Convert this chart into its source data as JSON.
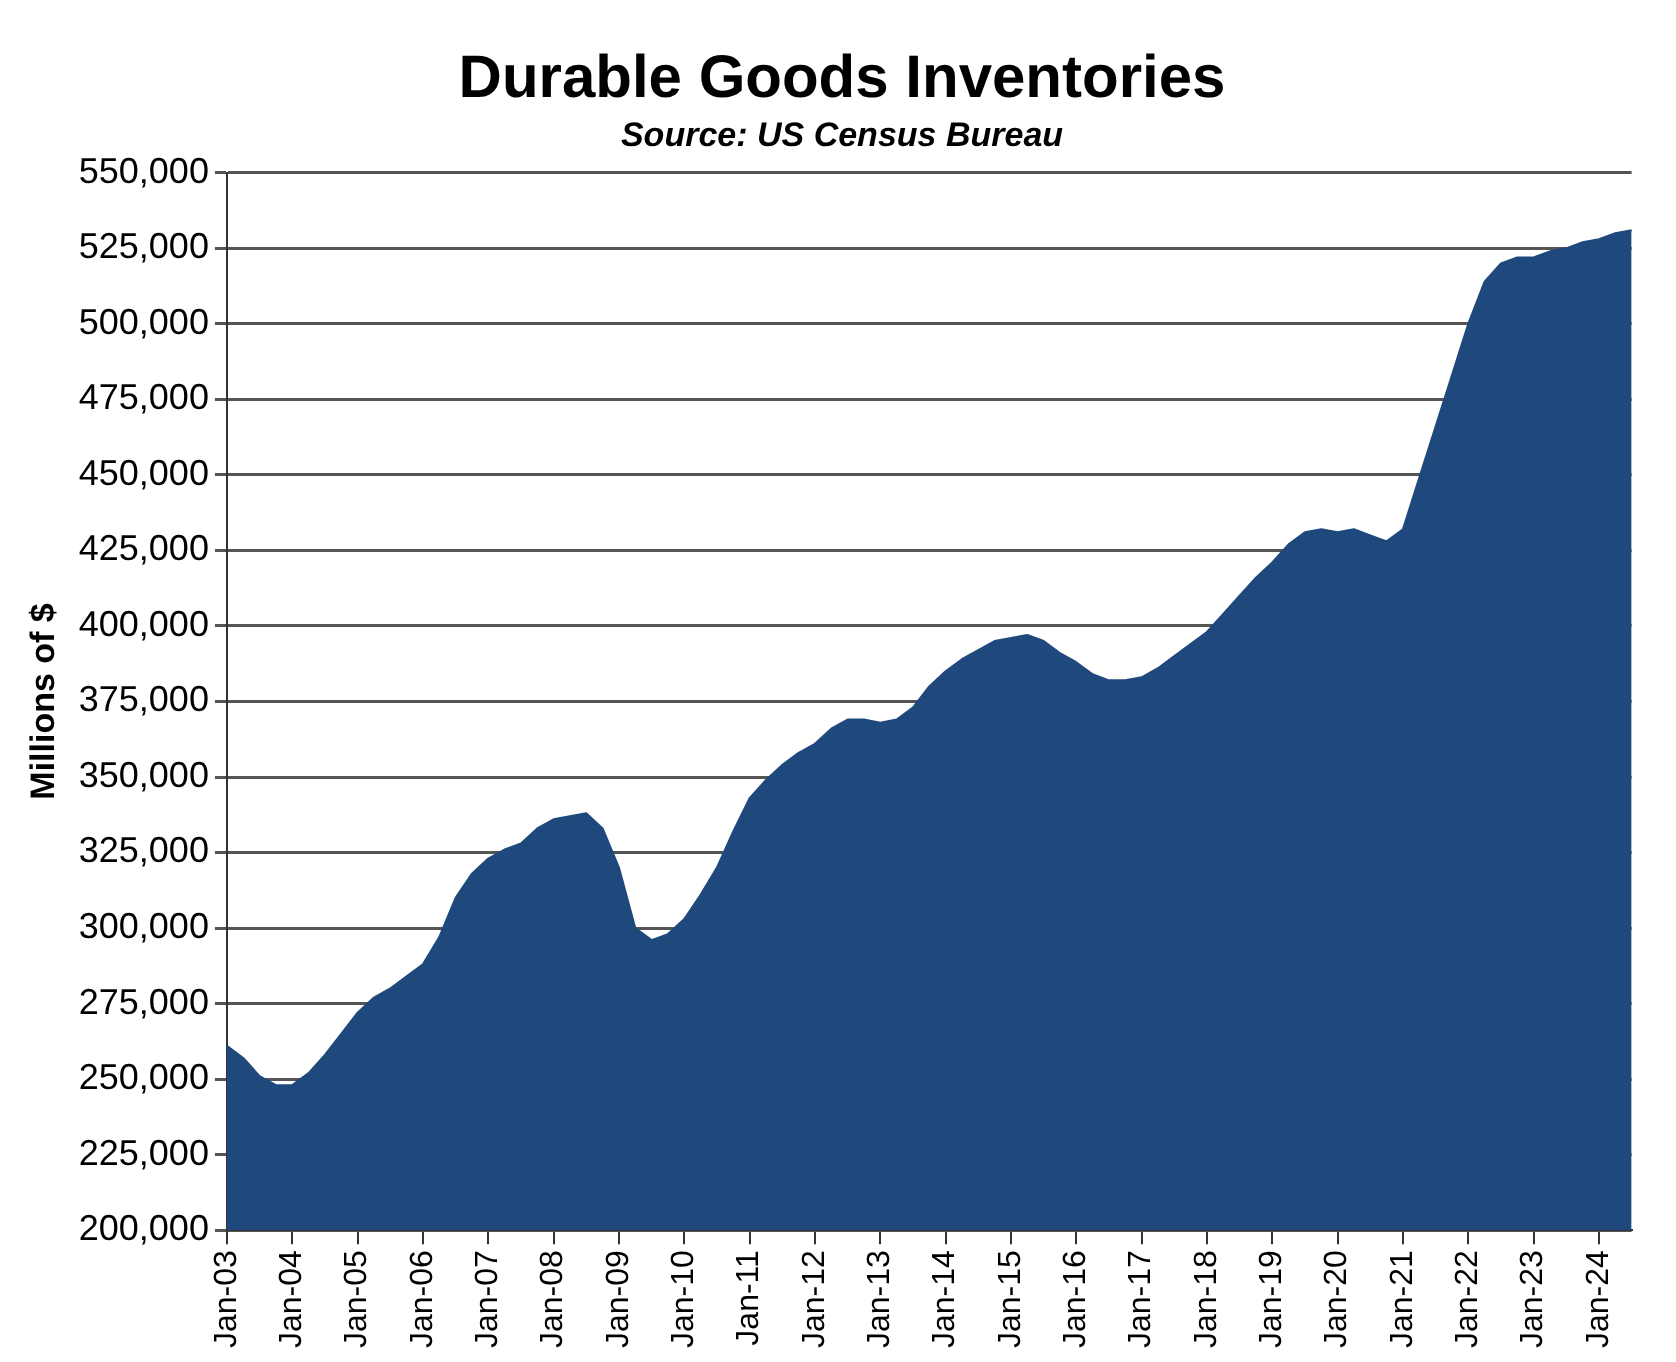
{
  "chart_data": {
    "type": "area",
    "title": "Durable Goods Inventories",
    "subtitle": "Source: US Census Bureau",
    "ylabel": "Millions of $",
    "categories": [
      "Jan-03",
      null,
      null,
      null,
      "Jan-04",
      null,
      null,
      null,
      "Jan-05",
      null,
      null,
      null,
      "Jan-06",
      null,
      null,
      null,
      "Jan-07",
      null,
      null,
      null,
      "Jan-08",
      null,
      null,
      null,
      "Jan-09",
      null,
      null,
      null,
      "Jan-10",
      null,
      null,
      null,
      "Jan-11",
      null,
      null,
      null,
      "Jan-12",
      null,
      null,
      null,
      "Jan-13",
      null,
      null,
      null,
      "Jan-14",
      null,
      null,
      null,
      "Jan-15",
      null,
      null,
      null,
      "Jan-16",
      null,
      null,
      null,
      "Jan-17",
      null,
      null,
      null,
      "Jan-18",
      null,
      null,
      null,
      "Jan-19",
      null,
      null,
      null,
      "Jan-20",
      null,
      null,
      null,
      "Jan-21",
      null,
      null,
      null,
      "Jan-22",
      null,
      null,
      null,
      "Jan-23",
      null,
      null,
      null,
      "Jan-24",
      null,
      null
    ],
    "series": [
      {
        "color": "#1f497d",
        "values": [
          261000,
          257000,
          251000,
          248000,
          248000,
          252000,
          258000,
          265000,
          272000,
          277000,
          280000,
          284000,
          288000,
          297000,
          310000,
          318000,
          323000,
          326000,
          328000,
          333000,
          336000,
          337000,
          338000,
          333000,
          320000,
          300000,
          296000,
          298000,
          303000,
          311000,
          320000,
          332000,
          343000,
          349000,
          354000,
          358000,
          361000,
          366000,
          369000,
          369000,
          368000,
          369000,
          373000,
          380000,
          385000,
          389000,
          392000,
          395000,
          396000,
          397000,
          395000,
          391000,
          388000,
          384000,
          382000,
          382000,
          383000,
          386000,
          390000,
          394000,
          398000,
          404000,
          410000,
          416000,
          421000,
          427000,
          431000,
          432000,
          431000,
          432000,
          430000,
          428000,
          432000,
          449000,
          466000,
          483000,
          500000,
          514000,
          520000,
          522000,
          522000,
          524000,
          525000,
          527000,
          528000,
          530000,
          531000
        ]
      }
    ],
    "ylim": [
      200000,
      550000
    ],
    "yticks": [
      {
        "value": 200000,
        "label": "200,000"
      },
      {
        "value": 225000,
        "label": "225,000"
      },
      {
        "value": 250000,
        "label": "250,000"
      },
      {
        "value": 275000,
        "label": "275,000"
      },
      {
        "value": 300000,
        "label": "300,000"
      },
      {
        "value": 325000,
        "label": "325,000"
      },
      {
        "value": 350000,
        "label": "350,000"
      },
      {
        "value": 375000,
        "label": "375,000"
      },
      {
        "value": 400000,
        "label": "400,000"
      },
      {
        "value": 425000,
        "label": "425,000"
      },
      {
        "value": 450000,
        "label": "450,000"
      },
      {
        "value": 475000,
        "label": "475,000"
      },
      {
        "value": 500000,
        "label": "500,000"
      },
      {
        "value": 525000,
        "label": "525,000"
      },
      {
        "value": 550000,
        "label": "550,000"
      }
    ],
    "grid": "y",
    "legend": false
  }
}
